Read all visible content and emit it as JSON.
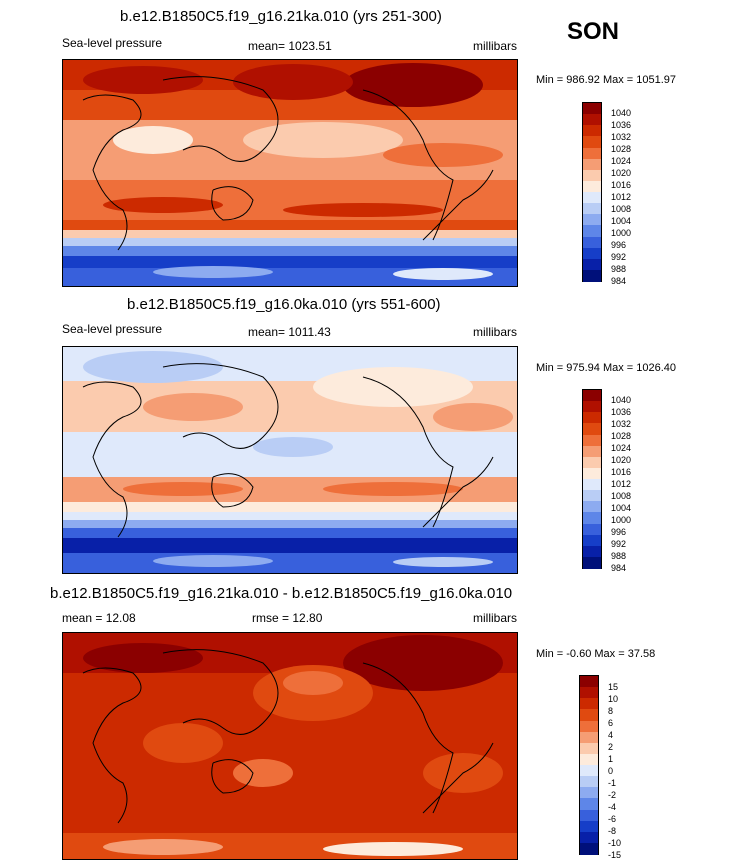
{
  "season": "SON",
  "panels": [
    {
      "title": "b.e12.B1850C5.f19_g16.21ka.010 (yrs 251-300)",
      "left_label": "Sea-level pressure",
      "center_label": "mean= 1023.51",
      "right_label": "millibars",
      "minmax": "Min = 986.92 Max = 1051.97",
      "levels": [
        "1040",
        "1036",
        "1032",
        "1028",
        "1024",
        "1020",
        "1016",
        "1012",
        "1008",
        "1004",
        "1000",
        "996",
        "992",
        "988",
        "984"
      ]
    },
    {
      "title": "b.e12.B1850C5.f19_g16.0ka.010 (yrs 551-600)",
      "left_label": "Sea-level pressure",
      "center_label": "mean= 1011.43",
      "right_label": "millibars",
      "minmax": "Min = 975.94 Max = 1026.40",
      "levels": [
        "1040",
        "1036",
        "1032",
        "1028",
        "1024",
        "1020",
        "1016",
        "1012",
        "1008",
        "1004",
        "1000",
        "996",
        "992",
        "988",
        "984"
      ]
    },
    {
      "title": "b.e12.B1850C5.f19_g16.21ka.010 - b.e12.B1850C5.f19_g16.0ka.010",
      "left_label": "mean =  12.08",
      "center_label": "rmse =  12.80",
      "right_label": "millibars",
      "minmax": "Min =  -0.60 Max =  37.58",
      "levels": [
        "15",
        "10",
        "8",
        "6",
        "4",
        "2",
        "1",
        "0",
        "-1",
        "-2",
        "-4",
        "-6",
        "-8",
        "-10",
        "-15"
      ]
    }
  ],
  "colors": {
    "palette": [
      "#8b0000",
      "#b01000",
      "#cc2a00",
      "#e04a10",
      "#ee6f3a",
      "#f59d74",
      "#fbcbae",
      "#fdebdc",
      "#dfe9fb",
      "#b9cdf5",
      "#8dabf0",
      "#5e86e8",
      "#3860dc",
      "#163ec8",
      "#0820a8",
      "#00107a"
    ],
    "land_outline": "#000000"
  },
  "icons": [
    "coastline-map"
  ]
}
